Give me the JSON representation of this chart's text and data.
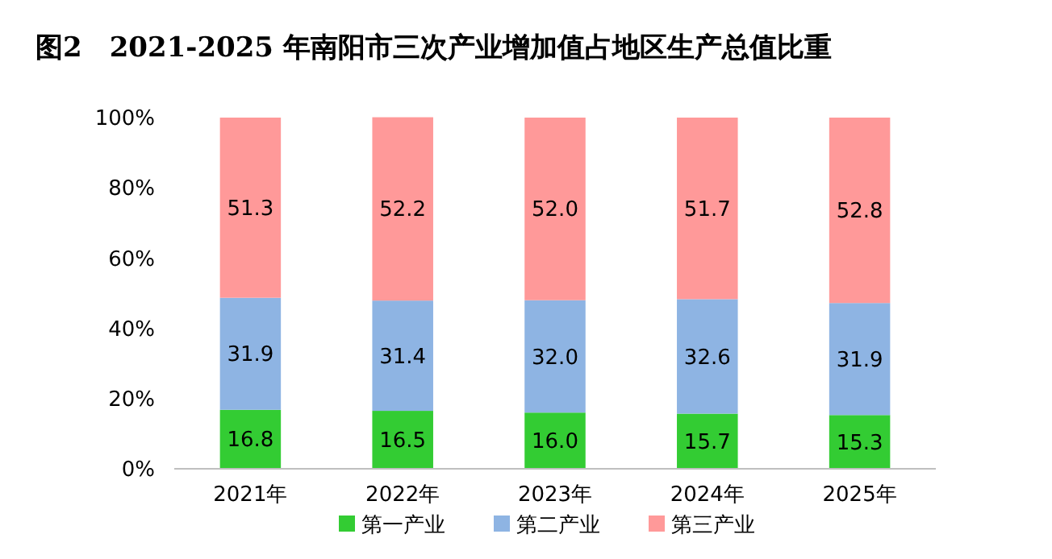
{
  "chart_data": {
    "type": "bar",
    "title": "图2　2021-2025 年南阳市三次产业增加值占地区生产总值比重",
    "categories": [
      "2021年",
      "2022年",
      "2023年",
      "2024年",
      "2025年"
    ],
    "series": [
      {
        "name": "第一产业",
        "color": "#33cc33",
        "values": [
          16.8,
          16.5,
          16.0,
          15.7,
          15.3
        ],
        "value_labels": [
          "16.8",
          "16.5",
          "16.0",
          "15.7",
          "15.3"
        ]
      },
      {
        "name": "第二产业",
        "color": "#8eb4e3",
        "values": [
          31.9,
          31.4,
          32.0,
          32.6,
          31.9
        ],
        "value_labels": [
          "31.9",
          "31.4",
          "32.0",
          "32.6",
          "31.9"
        ]
      },
      {
        "name": "第三产业",
        "color": "#ff9999",
        "values": [
          51.3,
          52.2,
          52.0,
          51.7,
          52.8
        ],
        "value_labels": [
          "51.3",
          "52.2",
          "52.0",
          "51.7",
          "52.8"
        ]
      }
    ],
    "stacked": true,
    "ylim": [
      0,
      100
    ],
    "yticks": [
      {
        "value": 0,
        "label": "0%"
      },
      {
        "value": 20,
        "label": "20%"
      },
      {
        "value": 40,
        "label": "40%"
      },
      {
        "value": 60,
        "label": "60%"
      },
      {
        "value": 80,
        "label": "80%"
      },
      {
        "value": 100,
        "label": "100%"
      }
    ],
    "legend": "bottom",
    "grid": false
  }
}
